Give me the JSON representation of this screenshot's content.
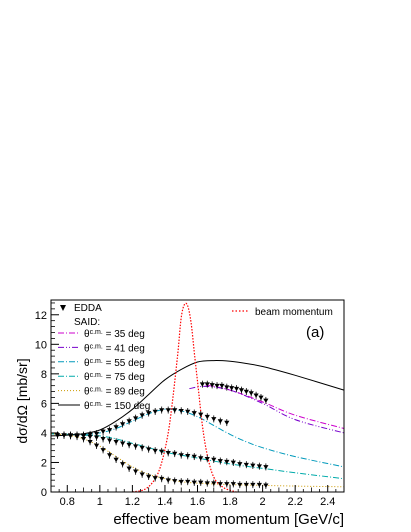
{
  "chart_data": {
    "type": "line",
    "xlabel": "effective beam momentum [GeV/c]",
    "ylabel": "dσ/dΩ [mb/sr]",
    "panel_label": "(a)",
    "xlim": [
      0.7,
      2.5
    ],
    "ylim": [
      0,
      13
    ],
    "x_ticks": [
      0.8,
      1,
      1.2,
      1.4,
      1.6,
      1.8,
      2,
      2.2,
      2.4
    ],
    "y_ticks": [
      0,
      2,
      4,
      6,
      8,
      10,
      12
    ],
    "grid": false,
    "legend": {
      "position": "top-left",
      "data_label": "EDDA",
      "model_heading": "SAID:",
      "entries": [
        {
          "prefix": "θ",
          "superscript": "c.m.",
          "suffix": " = 35 deg",
          "color": "#cc00cc",
          "dash": "dashdot"
        },
        {
          "prefix": "θ",
          "superscript": "c.m.",
          "suffix": " = 41 deg",
          "color": "#7700cc",
          "dash": "dashdotdot"
        },
        {
          "prefix": "θ",
          "superscript": "c.m.",
          "suffix": " = 55 deg",
          "color": "#0099bb",
          "dash": "dashdot"
        },
        {
          "prefix": "θ",
          "superscript": "c.m.",
          "suffix": " = 75 deg",
          "color": "#00aaaa",
          "dash": "dashdot"
        },
        {
          "prefix": "θ",
          "superscript": "c.m.",
          "suffix": " = 89 deg",
          "color": "#cc9900",
          "dash": "dotted"
        },
        {
          "prefix": "θ",
          "superscript": "c.m.",
          "suffix": " = 150 deg",
          "color": "#000000",
          "dash": "solid"
        }
      ]
    },
    "beam_legend": {
      "label": "beam momentum",
      "color": "#ff0000",
      "position": "top-right"
    },
    "series": [
      {
        "angle_deg": 35,
        "color": "#cc00cc",
        "dash": "dashdot",
        "x": [
          1.65,
          1.8,
          2.0,
          2.2,
          2.5
        ],
        "y": [
          7.25,
          6.9,
          6.1,
          5.2,
          4.3
        ]
      },
      {
        "angle_deg": 41,
        "color": "#7700cc",
        "dash": "dashdotdot",
        "x": [
          1.55,
          1.65,
          1.8,
          2.0,
          2.2,
          2.5
        ],
        "y": [
          7.0,
          7.15,
          6.9,
          6.0,
          4.9,
          4.0
        ]
      },
      {
        "angle_deg": 55,
        "color": "#0099bb",
        "dash": "dashdot",
        "x": [
          0.7,
          0.8,
          0.9,
          1.0,
          1.1,
          1.2,
          1.3,
          1.4,
          1.5,
          1.6,
          1.7,
          1.8,
          1.9,
          2.0,
          2.2,
          2.5
        ],
        "y": [
          3.95,
          3.9,
          3.9,
          4.0,
          4.3,
          4.8,
          5.3,
          5.6,
          5.5,
          5.1,
          4.5,
          3.9,
          3.4,
          3.0,
          2.4,
          1.7
        ]
      },
      {
        "angle_deg": 75,
        "color": "#00aaaa",
        "dash": "dashdot",
        "x": [
          0.7,
          0.8,
          0.9,
          1.0,
          1.1,
          1.2,
          1.3,
          1.4,
          1.5,
          1.6,
          1.8,
          2.0,
          2.2,
          2.5
        ],
        "y": [
          3.95,
          3.9,
          3.85,
          3.8,
          3.6,
          3.3,
          3.0,
          2.7,
          2.5,
          2.3,
          1.9,
          1.6,
          1.3,
          0.9
        ]
      },
      {
        "angle_deg": 89,
        "color": "#cc9900",
        "dash": "dotted",
        "x": [
          0.7,
          0.8,
          0.9,
          1.0,
          1.1,
          1.2,
          1.3,
          1.4,
          1.5,
          1.6,
          1.8,
          2.0,
          2.2,
          2.5
        ],
        "y": [
          3.95,
          3.85,
          3.6,
          3.1,
          2.4,
          1.7,
          1.2,
          0.9,
          0.7,
          0.6,
          0.5,
          0.45,
          0.4,
          0.35
        ]
      },
      {
        "angle_deg": 150,
        "color": "#000000",
        "dash": "solid",
        "x": [
          0.7,
          0.8,
          0.9,
          1.0,
          1.1,
          1.2,
          1.3,
          1.4,
          1.5,
          1.6,
          1.7,
          1.8,
          1.9,
          2.0,
          2.2,
          2.5
        ],
        "y": [
          3.8,
          3.85,
          3.95,
          4.2,
          4.8,
          5.6,
          6.6,
          7.6,
          8.3,
          8.8,
          8.9,
          8.85,
          8.7,
          8.5,
          7.9,
          6.9
        ]
      }
    ],
    "beam_profile": {
      "color": "#ff0000",
      "x": [
        1.2,
        1.28,
        1.34,
        1.38,
        1.42,
        1.45,
        1.48,
        1.5,
        1.52,
        1.54,
        1.56,
        1.58,
        1.6,
        1.63,
        1.66,
        1.7,
        1.76,
        1.84
      ],
      "y": [
        0.0,
        0.2,
        0.9,
        2.0,
        4.0,
        6.5,
        9.5,
        11.8,
        12.7,
        12.6,
        11.5,
        9.5,
        7.5,
        4.5,
        2.5,
        1.0,
        0.3,
        0.0
      ]
    },
    "edda_points": [
      {
        "angle_deg": 35,
        "x": [
          1.63,
          1.66,
          1.69,
          1.72,
          1.75,
          1.78,
          1.81,
          1.84,
          1.87,
          1.9,
          1.93,
          1.96,
          1.99,
          2.02
        ],
        "y": [
          7.3,
          7.3,
          7.25,
          7.2,
          7.2,
          7.1,
          7.05,
          7.0,
          6.9,
          6.8,
          6.7,
          6.55,
          6.4,
          6.2
        ]
      },
      {
        "angle_deg": 55,
        "x": [
          0.74,
          0.78,
          0.82,
          0.86,
          0.9,
          0.94,
          0.98,
          1.02,
          1.06,
          1.1,
          1.14,
          1.18,
          1.22,
          1.26,
          1.3,
          1.34,
          1.38,
          1.42,
          1.46,
          1.5,
          1.54,
          1.58,
          1.62,
          1.66,
          1.7,
          1.74,
          1.78
        ],
        "y": [
          3.85,
          3.85,
          3.85,
          3.85,
          3.85,
          3.9,
          3.95,
          4.1,
          4.2,
          4.4,
          4.6,
          4.8,
          5.0,
          5.2,
          5.35,
          5.45,
          5.55,
          5.55,
          5.55,
          5.5,
          5.45,
          5.35,
          5.25,
          5.1,
          4.95,
          4.8,
          4.7
        ]
      },
      {
        "angle_deg": 75,
        "x": [
          0.74,
          0.78,
          0.82,
          0.86,
          0.9,
          0.94,
          0.98,
          1.02,
          1.06,
          1.1,
          1.14,
          1.18,
          1.22,
          1.26,
          1.3,
          1.34,
          1.38,
          1.42,
          1.46,
          1.5,
          1.54,
          1.58,
          1.62,
          1.66,
          1.7,
          1.74,
          1.78,
          1.82,
          1.86,
          1.9,
          1.94,
          1.98,
          2.02
        ],
        "y": [
          3.85,
          3.85,
          3.85,
          3.85,
          3.8,
          3.75,
          3.7,
          3.6,
          3.5,
          3.4,
          3.3,
          3.2,
          3.1,
          3.0,
          2.9,
          2.8,
          2.75,
          2.65,
          2.6,
          2.5,
          2.45,
          2.4,
          2.3,
          2.25,
          2.2,
          2.1,
          2.05,
          2.0,
          1.9,
          1.85,
          1.8,
          1.75,
          1.7
        ]
      },
      {
        "angle_deg": 89,
        "x": [
          0.74,
          0.78,
          0.82,
          0.86,
          0.9,
          0.94,
          0.98,
          1.02,
          1.06,
          1.1,
          1.14,
          1.18,
          1.22,
          1.26,
          1.3,
          1.34,
          1.38,
          1.42,
          1.46,
          1.5,
          1.54,
          1.58,
          1.62,
          1.66,
          1.7,
          1.74,
          1.78,
          1.82,
          1.86,
          1.9,
          1.94,
          1.98,
          2.02
        ],
        "y": [
          3.85,
          3.85,
          3.8,
          3.75,
          3.6,
          3.4,
          3.15,
          2.85,
          2.5,
          2.2,
          1.9,
          1.6,
          1.4,
          1.2,
          1.05,
          0.95,
          0.9,
          0.8,
          0.75,
          0.7,
          0.7,
          0.65,
          0.65,
          0.6,
          0.6,
          0.55,
          0.55,
          0.55,
          0.5,
          0.5,
          0.5,
          0.5,
          0.45
        ]
      }
    ]
  }
}
